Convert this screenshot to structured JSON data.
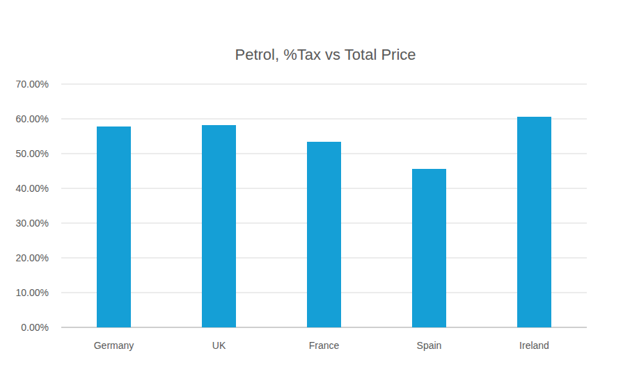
{
  "chart_data": {
    "type": "bar",
    "title": "Petrol, %Tax vs Total Price",
    "categories": [
      "Germany",
      "UK",
      "France",
      "Spain",
      "Ireland"
    ],
    "values": [
      57.8,
      58.2,
      53.4,
      45.6,
      60.6
    ],
    "color": "#159fd6",
    "ylim": [
      0,
      70
    ],
    "yticks": [
      {
        "value": 0,
        "label": "0.00%"
      },
      {
        "value": 10,
        "label": "10.00%"
      },
      {
        "value": 20,
        "label": "20.00%"
      },
      {
        "value": 30,
        "label": "30.00%"
      },
      {
        "value": 40,
        "label": "40.00%"
      },
      {
        "value": 50,
        "label": "50.00%"
      },
      {
        "value": 60,
        "label": "60.00%"
      },
      {
        "value": 70,
        "label": "70.00%"
      }
    ],
    "grid": true
  }
}
